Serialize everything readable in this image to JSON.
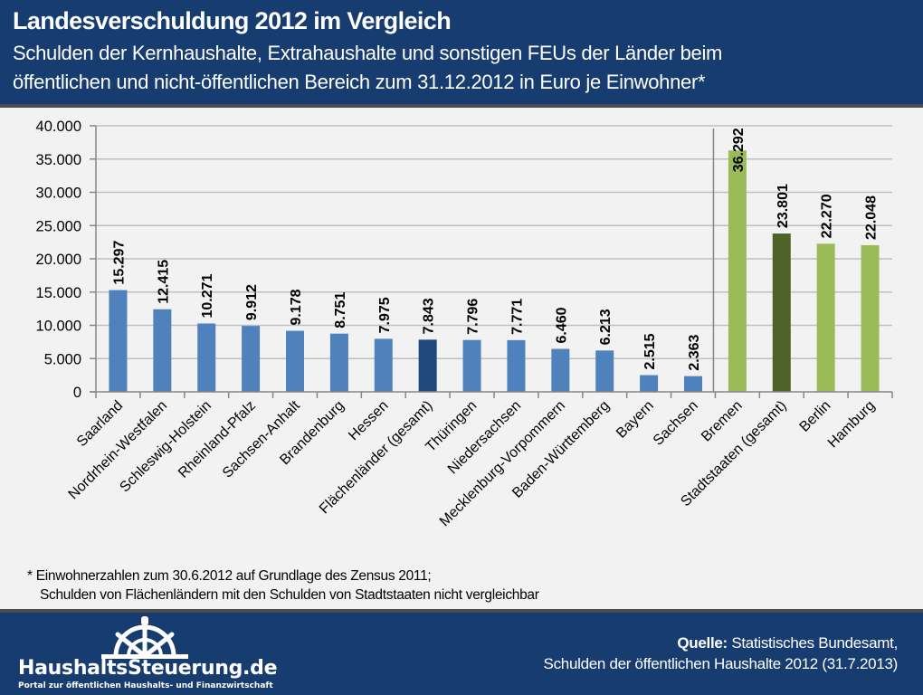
{
  "header": {
    "title": "Landesverschuldung 2012 im Vergleich",
    "subtitle_line1": "Schulden der Kernhaushalte, Extrahaushalte und sonstigen FEUs der Länder beim",
    "subtitle_line2": "öffentlichen und nicht-öffentlichen Bereich zum 31.12.2012 in Euro je Einwohner*"
  },
  "chart_data": {
    "type": "bar",
    "title": "Landesverschuldung 2012 im Vergleich",
    "xlabel": "",
    "ylabel": "Euro je Einwohner",
    "ylim": [
      0,
      40000
    ],
    "yticks": [
      0,
      5000,
      10000,
      15000,
      20000,
      25000,
      30000,
      35000,
      40000
    ],
    "ytick_labels": [
      "0",
      "5.000",
      "10.000",
      "15.000",
      "20.000",
      "25.000",
      "30.000",
      "35.000",
      "40.000"
    ],
    "grid": true,
    "legend": "none",
    "categories": [
      "Saarland",
      "Nordrhein-Westfalen",
      "Schleswig-Holstein",
      "Rheinland-Pfalz",
      "Sachsen-Anhalt",
      "Brandenburg",
      "Hessen",
      "Flächenländer (gesamt)",
      "Thüringen",
      "Niedersachsen",
      "Mecklenburg-Vorpommern",
      "Baden-Württemberg",
      "Bayern",
      "Sachsen",
      "Bremen",
      "Stadtstaaten (gesamt)",
      "Berlin",
      "Hamburg"
    ],
    "values": [
      15297,
      12415,
      10271,
      9912,
      9178,
      8751,
      7975,
      7843,
      7796,
      7771,
      6460,
      6213,
      2515,
      2363,
      36292,
      23801,
      22270,
      22048
    ],
    "value_labels": [
      "15.297",
      "12.415",
      "10.271",
      "9.912",
      "9.178",
      "8.751",
      "7.975",
      "7.843",
      "7.796",
      "7.771",
      "6.460",
      "6.213",
      "2.515",
      "2.363",
      "36.292",
      "23.801",
      "22.270",
      "22.048"
    ],
    "groups": [
      "Flächenländer",
      "Flächenländer",
      "Flächenländer",
      "Flächenländer",
      "Flächenländer",
      "Flächenländer",
      "Flächenländer",
      "Flächenländer-total",
      "Flächenländer",
      "Flächenländer",
      "Flächenländer",
      "Flächenländer",
      "Flächenländer",
      "Flächenländer",
      "Stadtstaaten",
      "Stadtstaaten-total",
      "Stadtstaaten",
      "Stadtstaaten"
    ],
    "colors": {
      "Flächenländer": "#4f81bd",
      "Flächenländer-total": "#1f497d",
      "Stadtstaaten": "#9bbb59",
      "Stadtstaaten-total": "#4f6228"
    },
    "separator_after_category": "Sachsen"
  },
  "footnote": {
    "line1": "* Einwohnerzahlen zum 30.6.2012 auf Grundlage des Zensus 2011;",
    "line2": "Schulden von Flächenländern mit den Schulden von Stadtstaaten nicht vergleichbar"
  },
  "footer": {
    "logo_icon": "ship-wheel-icon",
    "logo_name": "HaushaltsSteuerung.de",
    "logo_tagline": "Portal zur öffentlichen Haushalts- und Finanzwirtschaft",
    "source_label": "Quelle:",
    "source_text": " Statistisches Bundesamt,",
    "source_line2": "Schulden der öffentlichen Haushalte 2012 (31.7.2013)"
  },
  "theme": {
    "header_bg": "#173c70",
    "border": "#4d4d4d",
    "chart_bg": "#f2f2f2"
  }
}
